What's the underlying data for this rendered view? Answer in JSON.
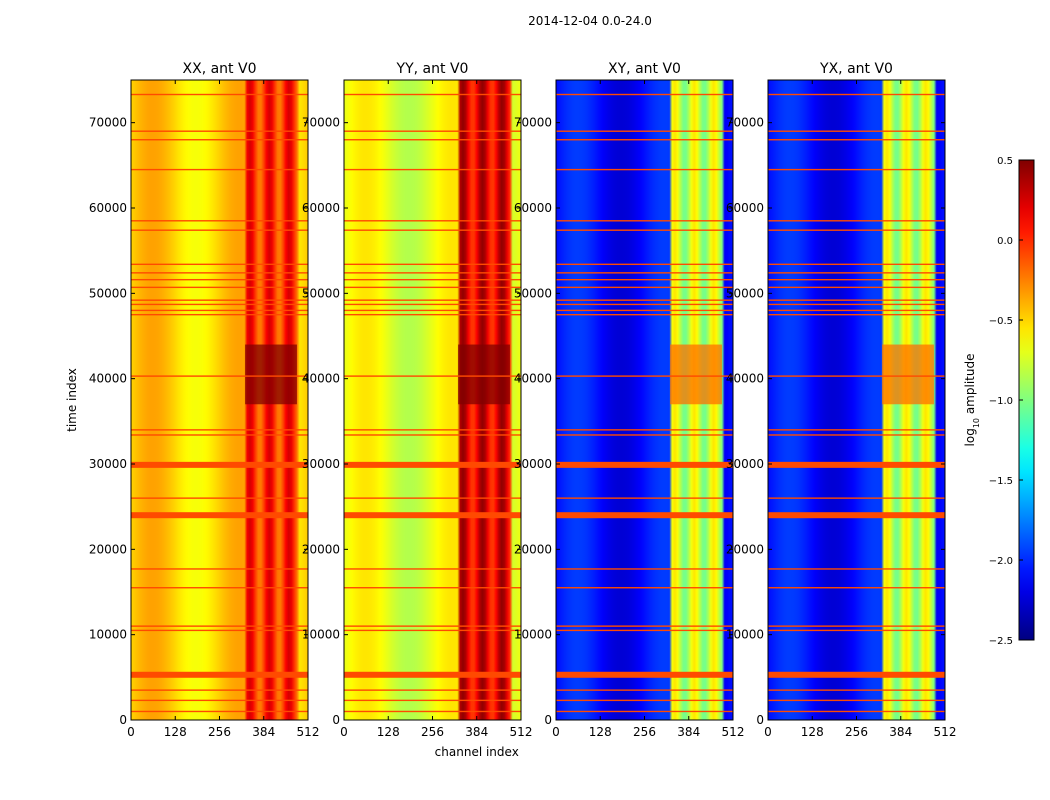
{
  "suptitle": "2014-12-04 0.0-24.0",
  "chart_data": [
    {
      "type": "heatmap",
      "title": "XX, ant V0",
      "xlabel": "",
      "ylabel": "time index",
      "xlim": [
        0,
        512
      ],
      "ylim": [
        0,
        75000
      ],
      "xticks": [
        "0",
        "128",
        "256",
        "384",
        "512"
      ],
      "yticks": [
        "0",
        "10000",
        "20000",
        "30000",
        "40000",
        "50000",
        "60000",
        "70000"
      ],
      "base_log_amplitude": -0.5,
      "hot_channel_range": [
        330,
        480
      ],
      "hot_value": 0.0
    },
    {
      "type": "heatmap",
      "title": "YY, ant V0",
      "xlabel": "channel index",
      "ylabel": "",
      "xlim": [
        0,
        512
      ],
      "ylim": [
        0,
        75000
      ],
      "xticks": [
        "0",
        "128",
        "256",
        "384",
        "512"
      ],
      "yticks": [
        "0",
        "10000",
        "20000",
        "30000",
        "40000",
        "50000",
        "60000",
        "70000"
      ],
      "base_log_amplitude": -0.7,
      "hot_channel_range": [
        330,
        480
      ],
      "hot_value": 0.2
    },
    {
      "type": "heatmap",
      "title": "XY, ant V0",
      "xlabel": "",
      "ylabel": "",
      "xlim": [
        0,
        512
      ],
      "ylim": [
        0,
        75000
      ],
      "xticks": [
        "0",
        "128",
        "256",
        "384",
        "512"
      ],
      "yticks": [
        "0",
        "10000",
        "20000",
        "30000",
        "40000",
        "50000",
        "60000",
        "70000"
      ],
      "base_log_amplitude": -2.1,
      "hot_channel_range": [
        330,
        480
      ],
      "hot_value": -0.8
    },
    {
      "type": "heatmap",
      "title": "YX, ant V0",
      "xlabel": "",
      "ylabel": "",
      "xlim": [
        0,
        512
      ],
      "ylim": [
        0,
        75000
      ],
      "xticks": [
        "0",
        "128",
        "256",
        "384",
        "512"
      ],
      "yticks": [
        "0",
        "10000",
        "20000",
        "30000",
        "40000",
        "50000",
        "60000",
        "70000"
      ],
      "base_log_amplitude": -2.1,
      "hot_channel_range": [
        330,
        480
      ],
      "hot_value": -0.8
    }
  ],
  "flagged_rows": [
    1000,
    2300,
    3500,
    5300,
    10500,
    11000,
    15500,
    17700,
    24000,
    26000,
    29900,
    33400,
    34000,
    40300,
    47500,
    48000,
    48700,
    49200,
    50700,
    51600,
    52400,
    53400,
    57400,
    58500,
    64500,
    68000,
    69000,
    73300
  ],
  "thick_flagged_rows": [
    5300,
    24000,
    29900
  ],
  "colorbar": {
    "label": "log10 amplitude",
    "label_main": "log",
    "label_sub": "10",
    "label_rest": " amplitude",
    "min": -2.5,
    "max": 0.5,
    "ticks": [
      "0.5",
      "0.0",
      "−0.5",
      "−1.0",
      "−1.5",
      "−2.0",
      "−2.5"
    ],
    "tick_values": [
      0.5,
      0.0,
      -0.5,
      -1.0,
      -1.5,
      -2.0,
      -2.5
    ],
    "colormap": "jet",
    "flag_color": "#ff4a00"
  }
}
